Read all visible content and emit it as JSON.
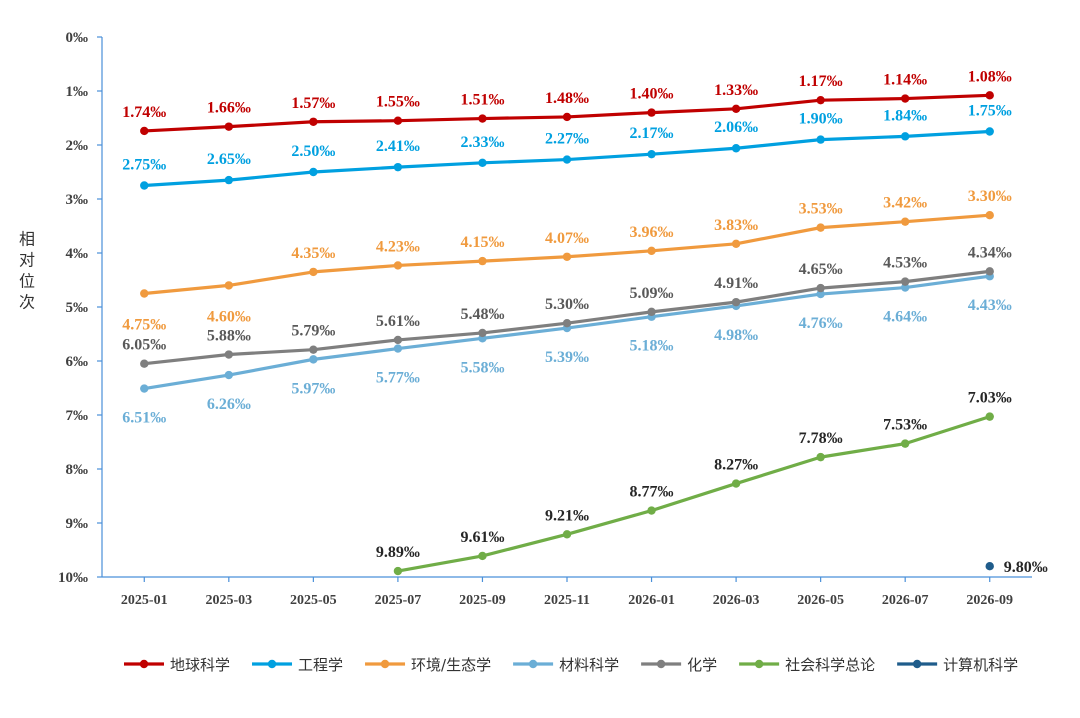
{
  "chart_data": {
    "type": "line",
    "title": "",
    "ylabel": "相对位次",
    "xlabel": "",
    "y_inverted": true,
    "ylim": [
      0,
      10
    ],
    "yticks": [
      "0‰",
      "1‰",
      "2‰",
      "3‰",
      "4‰",
      "5‰",
      "6‰",
      "7‰",
      "8‰",
      "9‰",
      "10‰"
    ],
    "categories": [
      "2025-01",
      "2025-03",
      "2025-05",
      "2025-07",
      "2025-09",
      "2025-11",
      "2026-01",
      "2026-03",
      "2026-05",
      "2026-07",
      "2026-09"
    ],
    "legend_position": "bottom",
    "series": [
      {
        "name": "地球科学",
        "color": "#C00000",
        "label_color": "#C00000",
        "values": [
          1.74,
          1.66,
          1.57,
          1.55,
          1.51,
          1.48,
          1.4,
          1.33,
          1.17,
          1.14,
          1.08
        ],
        "labels": [
          "1.74‰",
          "1.66‰",
          "1.57‰",
          "1.55‰",
          "1.51‰",
          "1.48‰",
          "1.40‰",
          "1.33‰",
          "1.17‰",
          "1.14‰",
          "1.08‰"
        ]
      },
      {
        "name": "工程学",
        "color": "#00A0E0",
        "label_color": "#00A0E0",
        "values": [
          2.75,
          2.65,
          2.5,
          2.41,
          2.33,
          2.27,
          2.17,
          2.06,
          1.9,
          1.84,
          1.75
        ],
        "labels": [
          "2.75‰",
          "2.65‰",
          "2.50‰",
          "2.41‰",
          "2.33‰",
          "2.27‰",
          "2.17‰",
          "2.06‰",
          "1.90‰",
          "1.84‰",
          "1.75‰"
        ]
      },
      {
        "name": "环境/生态学",
        "color": "#F09A3E",
        "label_color": "#F09A3E",
        "values": [
          4.75,
          4.6,
          4.35,
          4.23,
          4.15,
          4.07,
          3.96,
          3.83,
          3.53,
          3.42,
          3.3
        ],
        "labels": [
          "4.75‰",
          "4.60‰",
          "4.35‰",
          "4.23‰",
          "4.15‰",
          "4.07‰",
          "3.96‰",
          "3.83‰",
          "3.53‰",
          "3.42‰",
          "3.30‰"
        ]
      },
      {
        "name": "材料科学",
        "color": "#6BAED6",
        "label_color": "#6BAED6",
        "values": [
          6.51,
          6.26,
          5.97,
          5.77,
          5.58,
          5.39,
          5.18,
          4.98,
          4.76,
          4.64,
          4.43
        ],
        "labels": [
          "6.51‰",
          "6.26‰",
          "5.97‰",
          "5.77‰",
          "5.58‰",
          "5.39‰",
          "5.18‰",
          "4.98‰",
          "4.76‰",
          "4.64‰",
          "4.43‰"
        ]
      },
      {
        "name": "化学",
        "color": "#7F7F7F",
        "label_color": "#595959",
        "values": [
          6.05,
          5.88,
          5.79,
          5.61,
          5.48,
          5.3,
          5.09,
          4.91,
          4.65,
          4.53,
          4.34
        ],
        "labels": [
          "6.05‰",
          "5.88‰",
          "5.79‰",
          "5.61‰",
          "5.48‰",
          "5.30‰",
          "5.09‰",
          "4.91‰",
          "4.65‰",
          "4.53‰",
          "4.34‰"
        ]
      },
      {
        "name": "社会科学总论",
        "color": "#70AD47",
        "label_color": "#262626",
        "values": [
          null,
          null,
          null,
          9.89,
          9.61,
          9.21,
          8.77,
          8.27,
          7.78,
          7.53,
          7.03
        ],
        "labels": [
          "",
          "",
          "",
          "9.89‰",
          "9.61‰",
          "9.21‰",
          "8.77‰",
          "8.27‰",
          "7.78‰",
          "7.53‰",
          "7.03‰"
        ]
      },
      {
        "name": "计算机科学",
        "color": "#1F5C8B",
        "label_color": "#262626",
        "values": [
          null,
          null,
          null,
          null,
          null,
          null,
          null,
          null,
          null,
          null,
          9.8
        ],
        "labels": [
          "",
          "",
          "",
          "",
          "",
          "",
          "",
          "",
          "",
          "",
          "9.80‰"
        ]
      }
    ]
  }
}
